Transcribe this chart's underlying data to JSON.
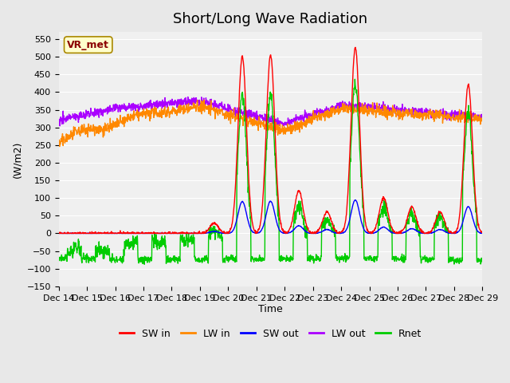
{
  "title": "Short/Long Wave Radiation",
  "ylabel": "(W/m2)",
  "xlabel": "Time",
  "ylim": [
    -150,
    570
  ],
  "bg_color": "#e8e8e8",
  "plot_bg_color": "#f0f0f0",
  "station_label": "VR_met",
  "x_tick_labels": [
    "Dec 14",
    "Dec 15",
    "Dec 16",
    "Dec 17",
    "Dec 18",
    "Dec 19",
    "Dec 20",
    "Dec 21",
    "Dec 22",
    "Dec 23",
    "Dec 24",
    "Dec 25",
    "Dec 26",
    "Dec 27",
    "Dec 28",
    "Dec 29"
  ],
  "legend_items": [
    {
      "label": "SW in",
      "color": "#ff0000"
    },
    {
      "label": "LW in",
      "color": "#ff8800"
    },
    {
      "label": "SW out",
      "color": "#0000ff"
    },
    {
      "label": "LW out",
      "color": "#aa00ff"
    },
    {
      "label": "Rnet",
      "color": "#00cc00"
    }
  ],
  "line_width": 1.0,
  "title_fontsize": 13,
  "legend_fontsize": 9,
  "tick_fontsize": 8,
  "ylabel_fontsize": 9,
  "xlabel_fontsize": 9,
  "yticks": [
    -150,
    -100,
    -50,
    0,
    50,
    100,
    150,
    200,
    250,
    300,
    350,
    400,
    450,
    500,
    550
  ]
}
